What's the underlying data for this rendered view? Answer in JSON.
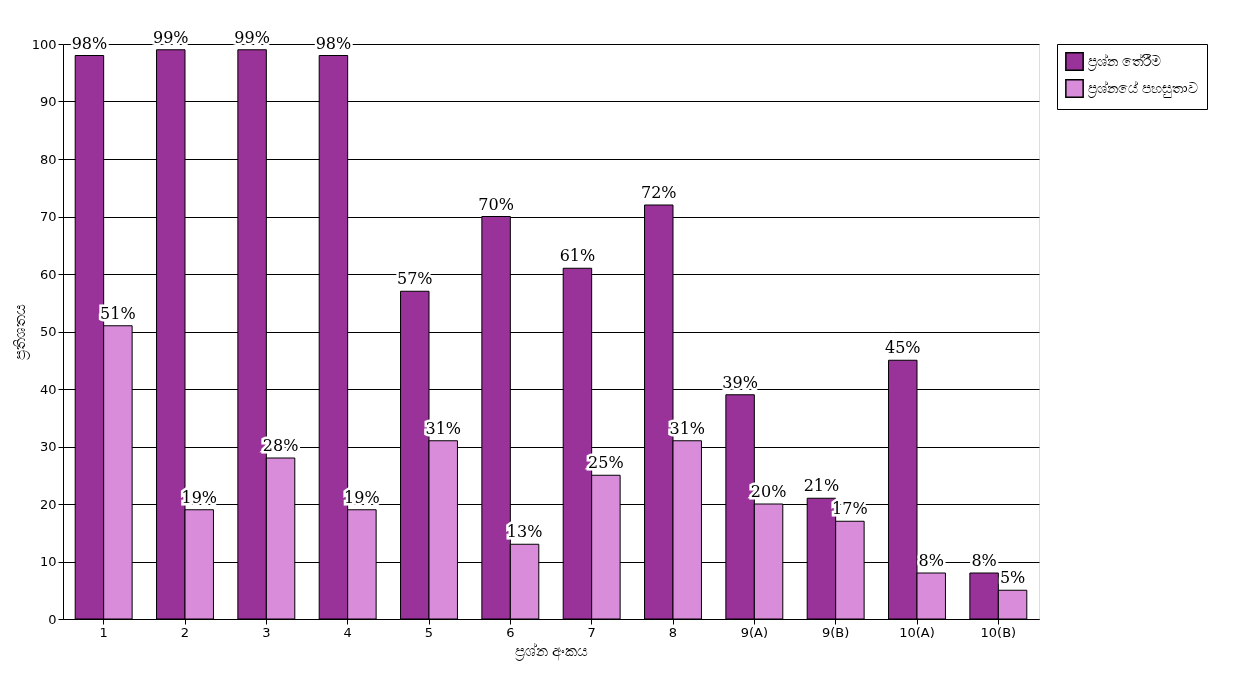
{
  "chart_data": {
    "type": "bar",
    "xlabel": "ප්‍රශ්න අංකය",
    "ylabel": "ප්‍රතිශතය",
    "categories": [
      "1",
      "2",
      "3",
      "4",
      "5",
      "6",
      "7",
      "8",
      "9(A)",
      "9(B)",
      "10(A)",
      "10(B)"
    ],
    "series": [
      {
        "name": "ප්‍රශ්න තේරීම",
        "color": "#993399",
        "values": [
          98,
          99,
          99,
          98,
          57,
          70,
          61,
          72,
          39,
          21,
          45,
          8
        ],
        "value_labels": [
          "98%",
          "99%",
          "99%",
          "98%",
          "57%",
          "70%",
          "61%",
          "72%",
          "39%",
          "21%",
          "45%",
          "8%"
        ]
      },
      {
        "name": "ප්‍රශ්නයේ පහසුතාව",
        "color": "#d98cd9",
        "values": [
          51,
          19,
          28,
          19,
          31,
          13,
          25,
          31,
          20,
          17,
          8,
          5
        ],
        "value_labels": [
          "51%",
          "19%",
          "28%",
          "19%",
          "31%",
          "13%",
          "25%",
          "31%",
          "20%",
          "17%",
          "8%",
          "5%"
        ]
      }
    ],
    "ylim": [
      0,
      100
    ],
    "yticks": [
      0,
      10,
      20,
      30,
      40,
      50,
      60,
      70,
      80,
      90,
      100
    ],
    "grid": "y",
    "legend": "right"
  }
}
